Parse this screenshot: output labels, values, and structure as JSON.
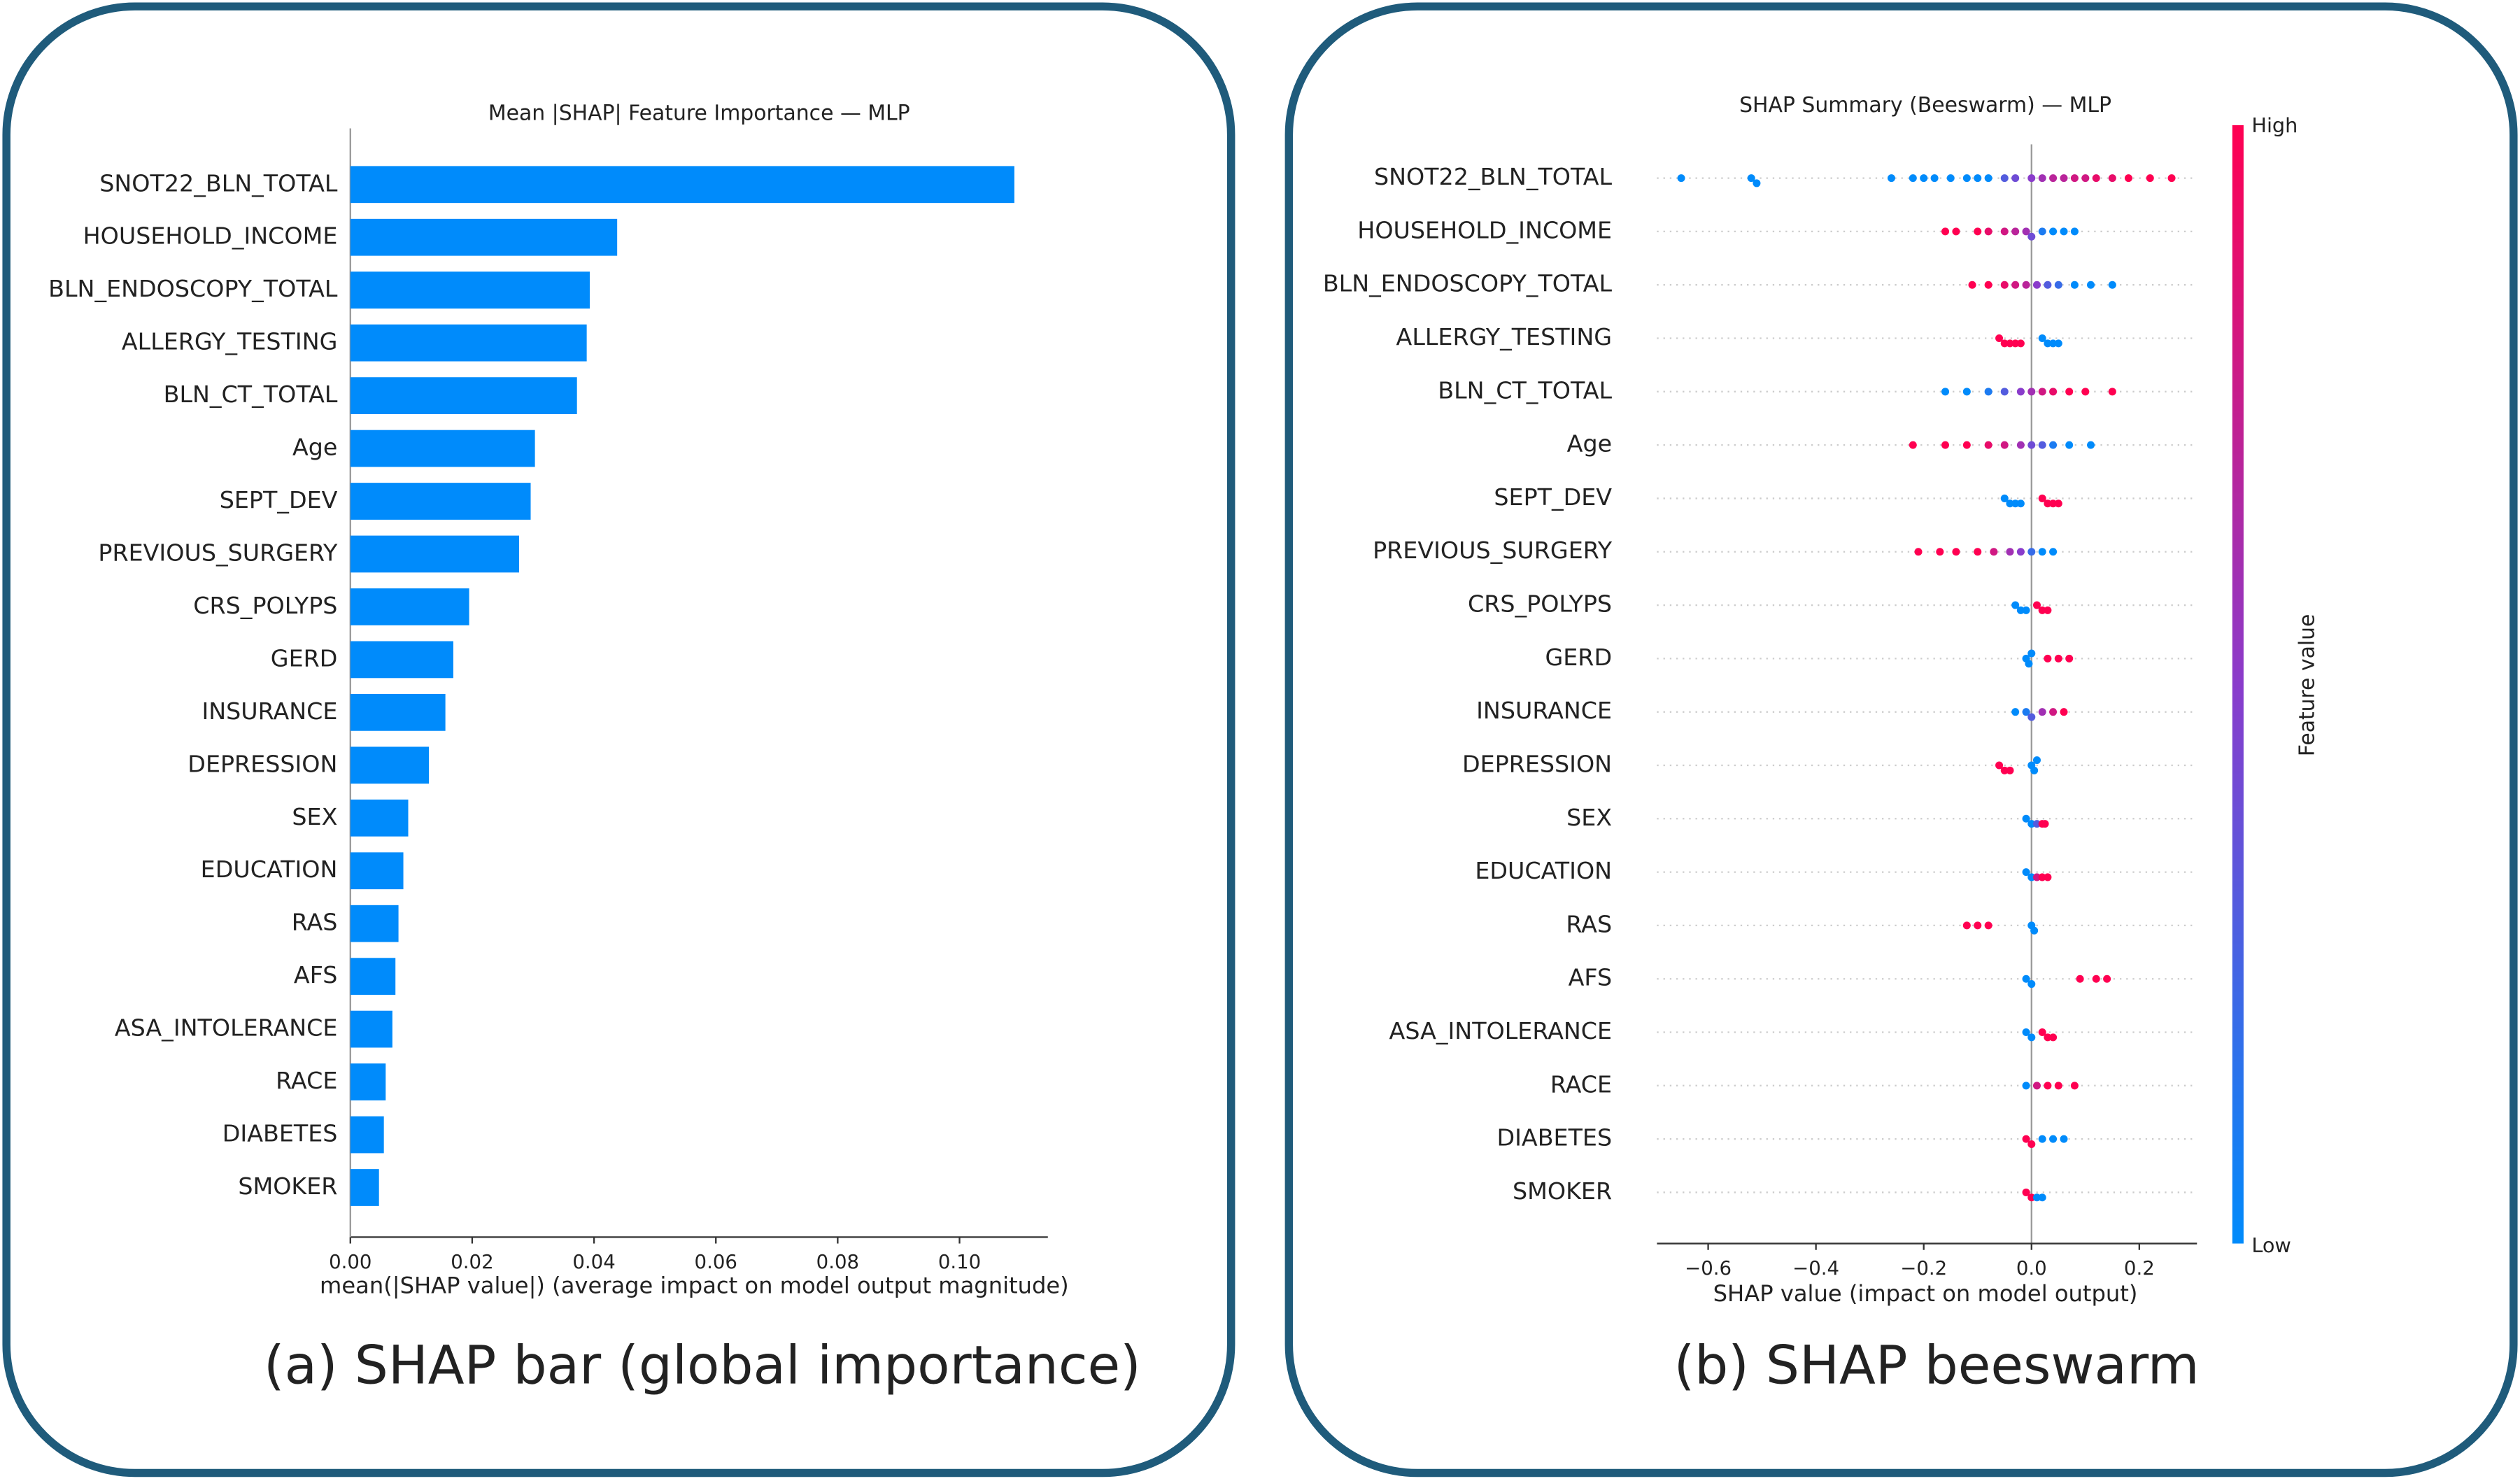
{
  "chart_data": [
    {
      "type": "bar",
      "title": "Mean |SHAP| Feature Importance — MLP",
      "xlabel": "mean(|SHAP value|) (average impact on model output magnitude)",
      "caption": "(a) SHAP bar (global importance)",
      "color": "#008bfb",
      "categories": [
        "SNOT22_BLN_TOTAL",
        "HOUSEHOLD_INCOME",
        "BLN_ENDOSCOPY_TOTAL",
        "ALLERGY_TESTING",
        "BLN_CT_TOTAL",
        "Age",
        "SEPT_DEV",
        "PREVIOUS_SURGERY",
        "CRS_POLYPS",
        "GERD",
        "INSURANCE",
        "DEPRESSION",
        "SEX",
        "EDUCATION",
        "RAS",
        "AFS",
        "ASA_INTOLERANCE",
        "RACE",
        "DIABETES",
        "SMOKER"
      ],
      "values": [
        0.109,
        0.0438,
        0.0393,
        0.0388,
        0.0372,
        0.0303,
        0.0296,
        0.0277,
        0.0195,
        0.0169,
        0.0156,
        0.0129,
        0.0095,
        0.0087,
        0.0079,
        0.0074,
        0.0069,
        0.0058,
        0.0055,
        0.0047
      ],
      "xlim": [
        0,
        0.1145
      ],
      "xticks": [
        {
          "value": 0,
          "label": "0.00"
        },
        {
          "value": 0.02,
          "label": "0.02"
        },
        {
          "value": 0.04,
          "label": "0.04"
        },
        {
          "value": 0.06,
          "label": "0.06"
        },
        {
          "value": 0.08,
          "label": "0.08"
        },
        {
          "value": 0.1,
          "label": "0.10"
        }
      ]
    },
    {
      "type": "beeswarm",
      "title": "SHAP Summary (Beeswarm) — MLP",
      "xlabel": "SHAP value (impact on model output)",
      "caption": "(b) SHAP beeswarm",
      "colorbar_label": "Feature value",
      "colorbar_high": "High",
      "colorbar_low": "Low",
      "cmap_colors": [
        "#008bfb",
        "#8a3ccb",
        "#ff0051"
      ],
      "categories": [
        "SNOT22_BLN_TOTAL",
        "HOUSEHOLD_INCOME",
        "BLN_ENDOSCOPY_TOTAL",
        "ALLERGY_TESTING",
        "BLN_CT_TOTAL",
        "Age",
        "SEPT_DEV",
        "PREVIOUS_SURGERY",
        "CRS_POLYPS",
        "GERD",
        "INSURANCE",
        "DEPRESSION",
        "SEX",
        "EDUCATION",
        "RAS",
        "AFS",
        "ASA_INTOLERANCE",
        "RACE",
        "DIABETES",
        "SMOKER"
      ],
      "points": [
        {
          "shap": [
            -0.65,
            -0.52,
            -0.51,
            -0.26,
            -0.22,
            -0.2,
            -0.18,
            -0.15,
            -0.12,
            -0.1,
            -0.08,
            -0.05,
            -0.03,
            0,
            0.02,
            0.04,
            0.06,
            0.08,
            0.1,
            0.12,
            0.15,
            0.18,
            0.22,
            0.26
          ],
          "feature_value": [
            0,
            0,
            0,
            0,
            0,
            0,
            0,
            0,
            0,
            0,
            0,
            0.3,
            0.4,
            0.5,
            0.6,
            0.7,
            0.7,
            0.8,
            0.8,
            0.9,
            0.9,
            1,
            1,
            1
          ]
        },
        {
          "shap": [
            -0.16,
            -0.14,
            -0.1,
            -0.08,
            -0.05,
            -0.03,
            -0.01,
            0,
            0.02,
            0.04,
            0.06,
            0.08
          ],
          "feature_value": [
            1,
            1,
            1,
            0.9,
            0.8,
            0.7,
            0.6,
            0.4,
            0.1,
            0,
            0,
            0
          ]
        },
        {
          "shap": [
            -0.11,
            -0.08,
            -0.05,
            -0.03,
            -0.01,
            0.01,
            0.03,
            0.05,
            0.08,
            0.11,
            0.15
          ],
          "feature_value": [
            1,
            1,
            0.9,
            0.8,
            0.7,
            0.5,
            0.3,
            0.2,
            0,
            0,
            0
          ]
        },
        {
          "shap": [
            -0.06,
            -0.05,
            -0.04,
            -0.03,
            -0.02,
            0.02,
            0.03,
            0.04,
            0.05
          ],
          "feature_value": [
            1,
            1,
            1,
            1,
            1,
            0,
            0,
            0,
            0
          ]
        },
        {
          "shap": [
            -0.16,
            -0.12,
            -0.08,
            -0.05,
            -0.02,
            0,
            0.02,
            0.04,
            0.07,
            0.1,
            0.15
          ],
          "feature_value": [
            0,
            0,
            0.1,
            0.3,
            0.5,
            0.6,
            0.8,
            0.9,
            1,
            1,
            1
          ]
        },
        {
          "shap": [
            -0.22,
            -0.16,
            -0.12,
            -0.08,
            -0.05,
            -0.02,
            0,
            0.02,
            0.04,
            0.07,
            0.11
          ],
          "feature_value": [
            1,
            1,
            1,
            0.9,
            0.8,
            0.6,
            0.4,
            0.3,
            0.1,
            0,
            0
          ]
        },
        {
          "shap": [
            -0.05,
            -0.04,
            -0.03,
            -0.02,
            0.02,
            0.03,
            0.04,
            0.05
          ],
          "feature_value": [
            0,
            0,
            0,
            0,
            1,
            1,
            1,
            1
          ]
        },
        {
          "shap": [
            -0.21,
            -0.17,
            -0.14,
            -0.1,
            -0.07,
            -0.04,
            -0.02,
            0,
            0.02,
            0.04
          ],
          "feature_value": [
            1,
            1,
            1,
            1,
            0.8,
            0.6,
            0.5,
            0.2,
            0,
            0
          ]
        },
        {
          "shap": [
            -0.03,
            -0.02,
            -0.01,
            0.01,
            0.02,
            0.03
          ],
          "feature_value": [
            0,
            0,
            0,
            1,
            1,
            1
          ]
        },
        {
          "shap": [
            -0.01,
            -0.005,
            0,
            0.03,
            0.05,
            0.07
          ],
          "feature_value": [
            0,
            0,
            0,
            1,
            1,
            1
          ]
        },
        {
          "shap": [
            -0.03,
            -0.01,
            0,
            0.02,
            0.04,
            0.06
          ],
          "feature_value": [
            0,
            0.1,
            0.3,
            0.6,
            0.8,
            1
          ]
        },
        {
          "shap": [
            -0.06,
            -0.05,
            -0.04,
            0,
            0.005,
            0.01
          ],
          "feature_value": [
            1,
            1,
            1,
            0,
            0,
            0
          ]
        },
        {
          "shap": [
            -0.01,
            0,
            0.01,
            0.02,
            0.025
          ],
          "feature_value": [
            0,
            0,
            0.3,
            1,
            1
          ]
        },
        {
          "shap": [
            -0.01,
            0,
            0.01,
            0.02,
            0.03
          ],
          "feature_value": [
            0,
            0,
            0.8,
            1,
            1
          ]
        },
        {
          "shap": [
            -0.12,
            -0.1,
            -0.08,
            0,
            0.005
          ],
          "feature_value": [
            1,
            1,
            1,
            0,
            0
          ]
        },
        {
          "shap": [
            -0.01,
            0,
            0.09,
            0.12,
            0.14
          ],
          "feature_value": [
            0,
            0,
            1,
            1,
            1
          ]
        },
        {
          "shap": [
            -0.01,
            0,
            0.02,
            0.03,
            0.04
          ],
          "feature_value": [
            0,
            0,
            1,
            1,
            1
          ]
        },
        {
          "shap": [
            -0.01,
            0.01,
            0.03,
            0.05,
            0.08
          ],
          "feature_value": [
            0,
            0.8,
            1,
            1,
            1
          ]
        },
        {
          "shap": [
            -0.01,
            0,
            0.02,
            0.04,
            0.06
          ],
          "feature_value": [
            1,
            1,
            0,
            0,
            0
          ]
        },
        {
          "shap": [
            -0.01,
            0,
            0.01,
            0.02
          ],
          "feature_value": [
            1,
            1,
            0,
            0
          ]
        }
      ],
      "xlim": [
        -0.695,
        0.307
      ],
      "xticks": [
        {
          "value": -0.6,
          "label": "−0.6"
        },
        {
          "value": -0.4,
          "label": "−0.4"
        },
        {
          "value": -0.2,
          "label": "−0.2"
        },
        {
          "value": 0,
          "label": "0.0"
        },
        {
          "value": 0.2,
          "label": "0.2"
        }
      ]
    }
  ]
}
